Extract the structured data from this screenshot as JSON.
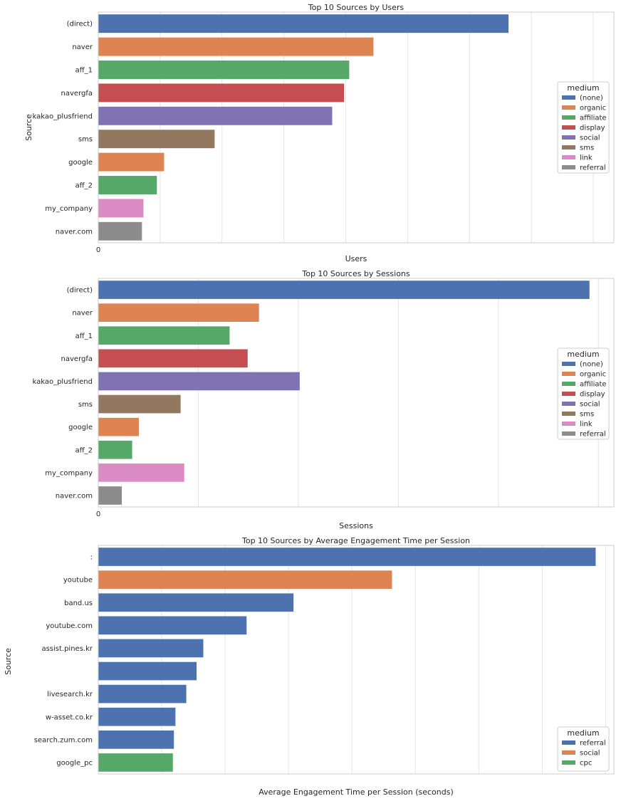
{
  "chart_data": [
    {
      "type": "bar",
      "orientation": "horizontal",
      "title": "Top 10 Sources by Users",
      "xlabel": "Users",
      "ylabel": "Source",
      "x_tick_labels": [
        "0"
      ],
      "xlim": [
        0,
        100
      ],
      "grid": true,
      "legend_title": "medium",
      "legend_placement": "center-right",
      "legend": [
        {
          "label": "(none)",
          "color": "#4c72b0"
        },
        {
          "label": "organic",
          "color": "#dd8452"
        },
        {
          "label": "affiliate",
          "color": "#55a868"
        },
        {
          "label": "display",
          "color": "#c44e52"
        },
        {
          "label": "social",
          "color": "#8172b3"
        },
        {
          "label": "sms",
          "color": "#937860"
        },
        {
          "label": "link",
          "color": "#da8bc3"
        },
        {
          "label": "referral",
          "color": "#8c8c8c"
        }
      ],
      "categories": [
        "(direct)",
        "naver",
        "aff_1",
        "navergfa",
        "kakao_plusfriend",
        "sms",
        "google",
        "aff_2",
        "my_company",
        "naver.com"
      ],
      "values": [
        79.5,
        53.3,
        48.6,
        47.6,
        45.3,
        22.5,
        12.7,
        11.3,
        8.7,
        8.4
      ],
      "bar_colors": [
        "#4c72b0",
        "#dd8452",
        "#55a868",
        "#c44e52",
        "#8172b3",
        "#937860",
        "#dd8452",
        "#55a868",
        "#da8bc3",
        "#8c8c8c"
      ]
    },
    {
      "type": "bar",
      "orientation": "horizontal",
      "title": "Top 10 Sources by Sessions",
      "xlabel": "Sessions",
      "ylabel": "",
      "x_tick_labels": [
        "0"
      ],
      "xlim": [
        0,
        100
      ],
      "grid": true,
      "legend_title": "medium",
      "legend_placement": "center-right",
      "legend": [
        {
          "label": "(none)",
          "color": "#4c72b0"
        },
        {
          "label": "organic",
          "color": "#dd8452"
        },
        {
          "label": "affiliate",
          "color": "#55a868"
        },
        {
          "label": "display",
          "color": "#c44e52"
        },
        {
          "label": "social",
          "color": "#8172b3"
        },
        {
          "label": "sms",
          "color": "#937860"
        },
        {
          "label": "link",
          "color": "#da8bc3"
        },
        {
          "label": "referral",
          "color": "#8c8c8c"
        }
      ],
      "categories": [
        "(direct)",
        "naver",
        "aff_1",
        "navergfa",
        "kakao_plusfriend",
        "sms",
        "google",
        "aff_2",
        "my_company",
        "naver.com"
      ],
      "values": [
        95.2,
        31.1,
        25.4,
        28.9,
        39.0,
        15.9,
        7.8,
        6.5,
        16.6,
        4.5
      ],
      "bar_colors": [
        "#4c72b0",
        "#dd8452",
        "#55a868",
        "#c44e52",
        "#8172b3",
        "#937860",
        "#dd8452",
        "#55a868",
        "#da8bc3",
        "#8c8c8c"
      ]
    },
    {
      "type": "bar",
      "orientation": "horizontal",
      "title": "Top 10 Sources by Average Engagement Time per Session",
      "xlabel": "Average Engagement Time per Session (seconds)",
      "ylabel": "Source",
      "x_tick_labels": [],
      "xlim": [
        0,
        100
      ],
      "grid": true,
      "legend_title": "medium",
      "legend_placement": "bottom-right",
      "legend": [
        {
          "label": "referral",
          "color": "#4c72b0"
        },
        {
          "label": "social",
          "color": "#dd8452"
        },
        {
          "label": "cpc",
          "color": "#55a868"
        }
      ],
      "categories": [
        ":",
        "youtube",
        "band.us",
        "youtube.com",
        "assist.pines.kr",
        "",
        "livesearch.kr",
        "w-asset.co.kr",
        "search.zum.com",
        "google_pc"
      ],
      "values": [
        96.4,
        56.9,
        37.8,
        28.7,
        20.3,
        19.0,
        17.0,
        14.9,
        14.6,
        14.4
      ],
      "bar_colors": [
        "#4c72b0",
        "#dd8452",
        "#4c72b0",
        "#4c72b0",
        "#4c72b0",
        "#4c72b0",
        "#4c72b0",
        "#4c72b0",
        "#4c72b0",
        "#55a868"
      ]
    }
  ]
}
